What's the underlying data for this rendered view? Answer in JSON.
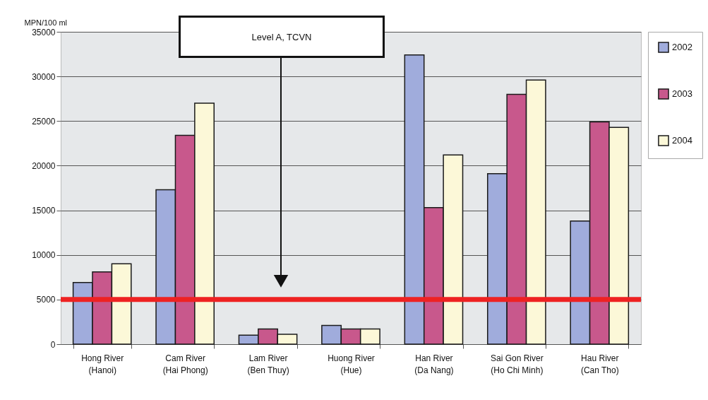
{
  "chart_data": {
    "type": "bar",
    "ylabel": "MPN/100 ml",
    "categories": [
      "Hong River (Hanoi)",
      "Cam River (Hai Phong)",
      "Lam River (Ben Thuy)",
      "Huong River (Hue)",
      "Han River (Da Nang)",
      "Sai Gon River (Ho Chi Minh)",
      "Hau River (Can Tho)"
    ],
    "series": [
      {
        "name": "2002",
        "color": "#a0acdc",
        "values": [
          6900,
          17300,
          1000,
          2100,
          32400,
          19100,
          13800
        ]
      },
      {
        "name": "2003",
        "color": "#c8588c",
        "values": [
          8100,
          23400,
          1700,
          1700,
          15300,
          28000,
          24900
        ]
      },
      {
        "name": "2004",
        "color": "#fcf8d8",
        "values": [
          9000,
          27000,
          1100,
          1700,
          21200,
          29600,
          24300
        ]
      }
    ],
    "ylim": [
      0,
      35000
    ],
    "yticks": [
      0,
      5000,
      10000,
      15000,
      20000,
      25000,
      30000,
      35000
    ],
    "grid": "y",
    "legend": "top right",
    "ref_lines": [
      {
        "axis": "y",
        "value": 5000,
        "color": "#ee2222"
      }
    ],
    "annotations": [
      "Level A, TCVN"
    ]
  }
}
